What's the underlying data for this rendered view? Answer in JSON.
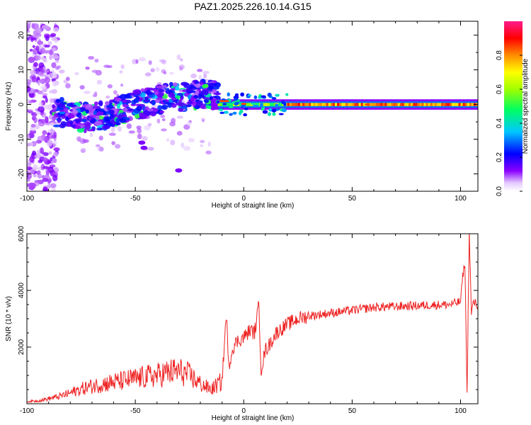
{
  "title": "PAZ1.2025.226.10.14.G15",
  "colors": {
    "snr_line": "#ee2222",
    "frame": "#000000",
    "background": "#ffffff"
  },
  "chart_data": [
    {
      "type": "heatmap",
      "title": "PAZ1.2025.226.10.14.G15",
      "xlabel": "Height of straight line (km)",
      "ylabel": "Frequency (Hz)",
      "xlim": [
        -100,
        108
      ],
      "ylim": [
        -25,
        24
      ],
      "x_ticks": [
        "-100",
        "-50",
        "0",
        "50",
        "100"
      ],
      "y_ticks": [
        "-20",
        "-10",
        "0",
        "10",
        "20"
      ],
      "colorbar": {
        "label": "Normalized spectral amplitude",
        "range": [
          0,
          1
        ],
        "ticks": [
          "0.0",
          "0.2",
          "0.4",
          "0.6",
          "0.8"
        ],
        "colormap": "rainbow (white/violet to magenta/red)"
      },
      "grid": false,
      "description_regions": [
        {
          "x": [
            -100,
            -88
          ],
          "y": [
            -25,
            24
          ],
          "amplitude": "low, scattered"
        },
        {
          "x": [
            -88,
            -15
          ],
          "y": [
            -8,
            8
          ],
          "amplitude": "medium, drifting upward"
        },
        {
          "x": [
            -15,
            108
          ],
          "y": [
            -0.7,
            0.7
          ],
          "amplitude": "high, narrow band near 0 Hz"
        }
      ]
    },
    {
      "type": "line",
      "xlabel": "Height of straight line (km)",
      "ylabel": "SNR (10 * v/v)",
      "xlim": [
        -100,
        108
      ],
      "ylim": [
        0,
        6000
      ],
      "x_ticks": [
        "-100",
        "-50",
        "0",
        "50",
        "100"
      ],
      "y_ticks": [
        "2000",
        "4000",
        "6000"
      ],
      "grid": false,
      "series": [
        {
          "x": [
            -100,
            -95,
            -90,
            -85,
            -80,
            -75,
            -70,
            -65,
            -60,
            -55,
            -50,
            -45,
            -40,
            -35,
            -30,
            -25,
            -20,
            -15,
            -10,
            -8,
            -7,
            -5,
            -3,
            0,
            3,
            5,
            7,
            8,
            10,
            12,
            15,
            20,
            25,
            30,
            35,
            40,
            45,
            50,
            55,
            60,
            65,
            70,
            75,
            80,
            85,
            90,
            95,
            100,
            101,
            102,
            103,
            104,
            105,
            106,
            108
          ],
          "y": [
            80,
            100,
            180,
            260,
            380,
            520,
            620,
            700,
            760,
            820,
            880,
            950,
            1000,
            1100,
            1150,
            1000,
            700,
            500,
            800,
            3200,
            1300,
            2000,
            2200,
            2350,
            2600,
            2500,
            3500,
            1200,
            1900,
            2100,
            2500,
            2800,
            3000,
            3100,
            3150,
            3200,
            3250,
            3300,
            3350,
            3400,
            3420,
            3430,
            3450,
            3460,
            3480,
            3490,
            3500,
            3600,
            4500,
            5000,
            300,
            6100,
            3200,
            3600,
            3450
          ]
        }
      ]
    }
  ]
}
